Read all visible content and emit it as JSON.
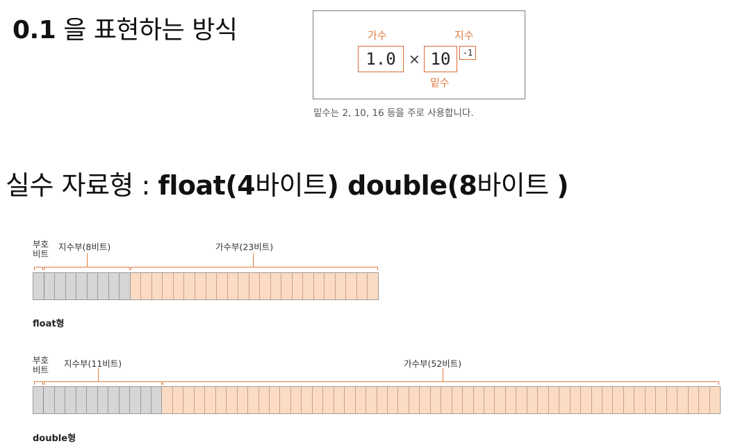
{
  "heading1": {
    "number": "0.1",
    "text": " 을 표현하는 방식"
  },
  "sci": {
    "mantissa_label": "가수",
    "exponent_label": "지수",
    "base_label": "밑수",
    "mantissa": "1.0",
    "times": "×",
    "base": "10",
    "exponent": "-1",
    "caption": "밑수는 2, 10, 16 등을 주로 사용합니다."
  },
  "heading2": {
    "prefix": "실수 자료형 : ",
    "float_kw": "float(4",
    "float_unit": "바이트",
    "float_close": ") ",
    "double_kw": "double(8",
    "double_unit": "바이트 ",
    "double_close": ")"
  },
  "float_layout": {
    "sign_label_line1": "부호",
    "sign_label_line2": "비트",
    "exponent_label": "지수부(8비트)",
    "mantissa_label": "가수부(23비트)",
    "type_name": "float형",
    "sign_bits": 1,
    "exponent_bits": 8,
    "mantissa_bits": 23
  },
  "double_layout": {
    "sign_label_line1": "부호",
    "sign_label_line2": "비트",
    "exponent_label": "지수부(11비트)",
    "mantissa_label": "가수부(52비트)",
    "type_name": "double형",
    "sign_bits": 1,
    "exponent_bits": 11,
    "mantissa_bits": 52
  },
  "colors": {
    "accent": "#e07a3f",
    "sign_exponent_fill": "#d6d6d6",
    "mantissa_fill": "#fbdcc3"
  }
}
